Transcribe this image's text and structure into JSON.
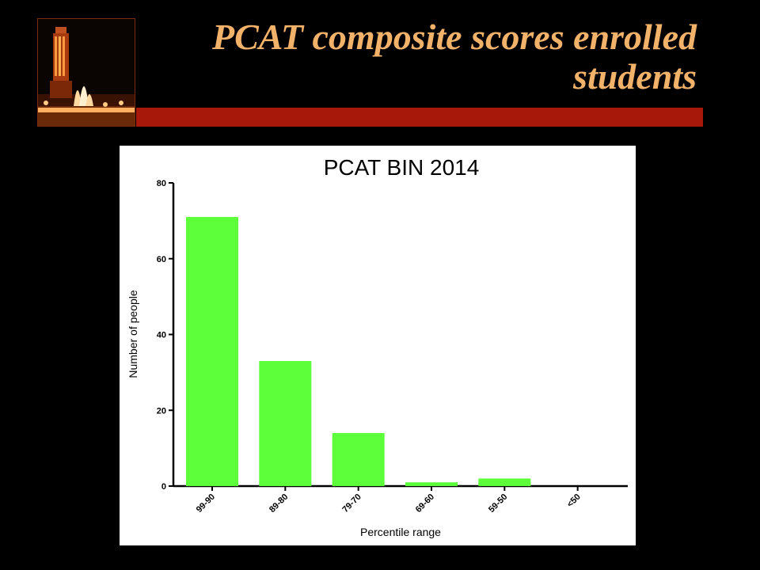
{
  "slide": {
    "title": "PCAT composite scores enrolled students"
  },
  "colors": {
    "accent_text": "#f3b26a",
    "bar_fill": "#5cff3a",
    "title_bar": "#a8180a"
  },
  "icons": {
    "header_photo": "tower-fountain-night-photo"
  },
  "chart_data": {
    "type": "bar",
    "title": "PCAT BIN 2014",
    "xlabel": "Percentile range",
    "ylabel": "Number of people",
    "categories": [
      "99-90",
      "89-80",
      "79-70",
      "69-60",
      "59-50",
      "<50"
    ],
    "values": [
      71,
      33,
      14,
      1,
      2,
      0
    ],
    "ylim": [
      0,
      80
    ],
    "yticks": [
      0,
      20,
      40,
      60,
      80
    ],
    "grid": false,
    "legend": "none"
  }
}
